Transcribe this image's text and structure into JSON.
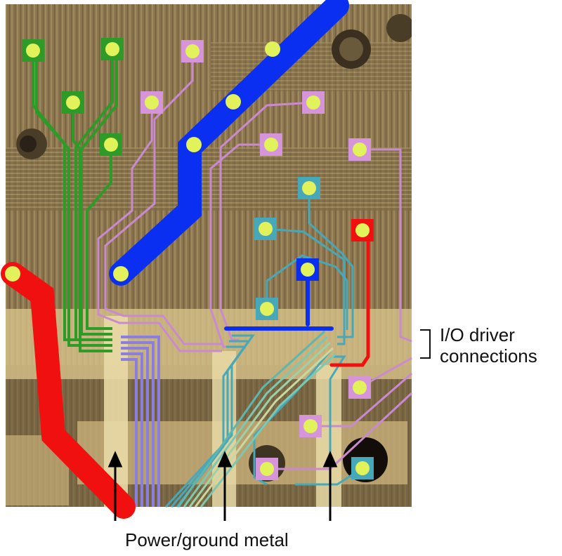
{
  "labels": {
    "io_line1": "I/O driver",
    "io_line2": "connections",
    "power_ground": "Power/ground metal"
  },
  "colors": {
    "die_background": "#8a7550",
    "die_dark": "#5e4d33",
    "die_light": "#c9b079",
    "power_metal": "#d8c48f",
    "blue_trace": "#0a2ff0",
    "red_trace": "#f01010",
    "green_trace": "#2e9a27",
    "pink_trace": "#c98ad0",
    "cyan_trace": "#46a8b8",
    "purple_trace": "#8a7ee0",
    "pad_fill": "#e2f25a",
    "arrow": "#000000"
  },
  "pad_groups": {
    "green": "green-pad",
    "pink": "pink-pad",
    "cyan": "cyan-pad",
    "blue": "blue-pad",
    "red": "red-pad"
  }
}
